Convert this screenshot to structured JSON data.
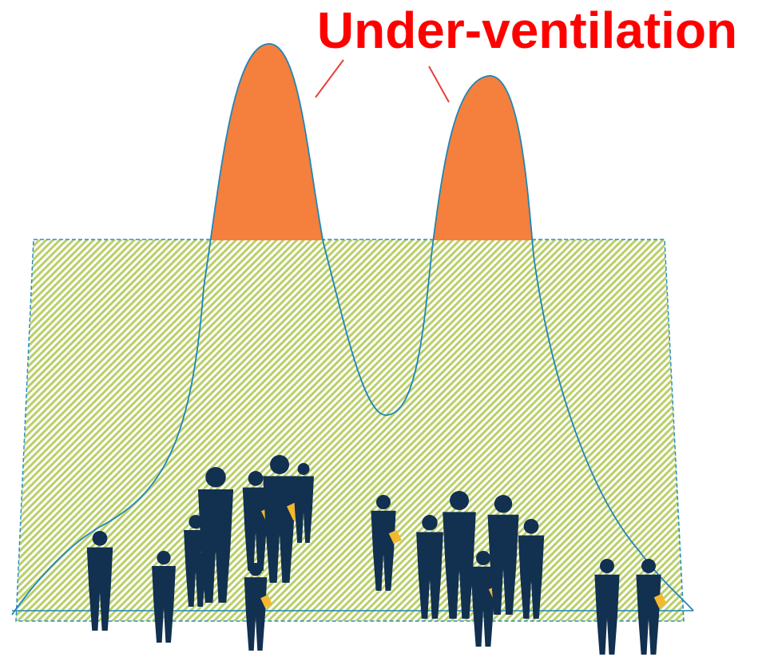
{
  "title": "Under-ventilation"
}
